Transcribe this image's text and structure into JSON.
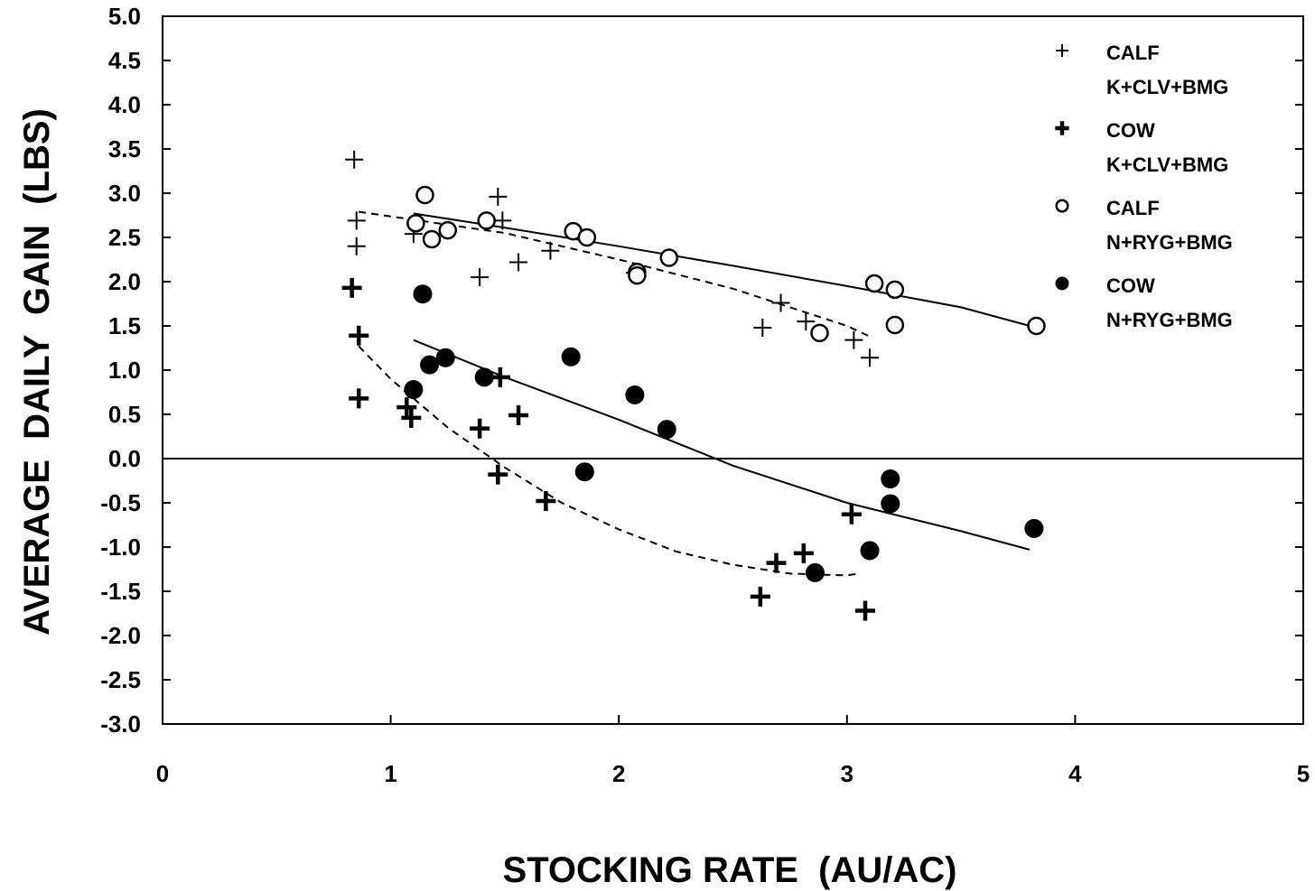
{
  "chart_data": {
    "type": "scatter",
    "xlabel": "STOCKING RATE  (AU/AC)",
    "ylabel": "AVERAGE  DAILY  GAIN  (LBS)",
    "xlim": [
      0,
      5
    ],
    "ylim": [
      -3.0,
      5.0
    ],
    "x_ticks": [
      "0",
      "1",
      "2",
      "3",
      "4",
      "5"
    ],
    "y_ticks": [
      "5.0",
      "4.5",
      "4.0",
      "3.5",
      "3.0",
      "2.5",
      "2.0",
      "1.5",
      "1.0",
      "0.5",
      "0.0",
      "-0.5",
      "-1.0",
      "-1.5",
      "-2.0",
      "-2.5",
      "-3.0"
    ],
    "grid": false,
    "reference_line_y": 0,
    "legend_position": "top-right",
    "series": [
      {
        "name": "CALF",
        "subname": "K+CLV+BMG",
        "marker": "thin-plus",
        "points": [
          [
            0.84,
            3.38
          ],
          [
            0.85,
            2.69
          ],
          [
            0.85,
            2.4
          ],
          [
            1.1,
            2.54
          ],
          [
            1.39,
            2.05
          ],
          [
            1.47,
            2.96
          ],
          [
            1.49,
            2.69
          ],
          [
            1.56,
            2.22
          ],
          [
            1.7,
            2.35
          ],
          [
            2.07,
            2.1
          ],
          [
            2.63,
            1.48
          ],
          [
            2.71,
            1.76
          ],
          [
            2.82,
            1.55
          ],
          [
            3.03,
            1.34
          ],
          [
            3.1,
            1.14
          ]
        ],
        "fit_line": {
          "style": "dashed",
          "points": [
            [
              0.86,
              2.79
            ],
            [
              1.5,
              2.55
            ],
            [
              2.0,
              2.25
            ],
            [
              2.5,
              1.92
            ],
            [
              3.0,
              1.5
            ],
            [
              3.1,
              1.38
            ]
          ]
        }
      },
      {
        "name": "COW",
        "subname": "K+CLV+BMG",
        "marker": "bold-plus",
        "points": [
          [
            0.83,
            1.93
          ],
          [
            0.86,
            1.39
          ],
          [
            0.86,
            0.68
          ],
          [
            1.07,
            0.58
          ],
          [
            1.09,
            0.46
          ],
          [
            1.39,
            0.34
          ],
          [
            1.47,
            -0.18
          ],
          [
            1.48,
            0.92
          ],
          [
            1.56,
            0.49
          ],
          [
            1.68,
            -0.48
          ],
          [
            2.62,
            -1.56
          ],
          [
            2.69,
            -1.18
          ],
          [
            2.81,
            -1.07
          ],
          [
            3.02,
            -0.63
          ],
          [
            3.08,
            -1.72
          ]
        ],
        "fit_line": {
          "style": "dashed",
          "points": [
            [
              0.86,
              1.27
            ],
            [
              1.0,
              0.9
            ],
            [
              1.25,
              0.35
            ],
            [
              1.5,
              -0.1
            ],
            [
              1.75,
              -0.5
            ],
            [
              2.0,
              -0.8
            ],
            [
              2.25,
              -1.05
            ],
            [
              2.5,
              -1.2
            ],
            [
              2.75,
              -1.3
            ],
            [
              3.0,
              -1.32
            ],
            [
              3.05,
              -1.3
            ]
          ]
        }
      },
      {
        "name": "CALF",
        "subname": "N+RYG+BMG",
        "marker": "open-circle",
        "points": [
          [
            1.11,
            2.66
          ],
          [
            1.15,
            2.98
          ],
          [
            1.18,
            2.48
          ],
          [
            1.25,
            2.58
          ],
          [
            1.42,
            2.69
          ],
          [
            1.8,
            2.57
          ],
          [
            1.86,
            2.5
          ],
          [
            2.08,
            2.11
          ],
          [
            2.08,
            2.07
          ],
          [
            2.22,
            2.27
          ],
          [
            2.88,
            1.42
          ],
          [
            3.12,
            1.98
          ],
          [
            3.21,
            1.91
          ],
          [
            3.21,
            1.51
          ],
          [
            3.83,
            1.5
          ]
        ],
        "fit_line": {
          "style": "solid",
          "points": [
            [
              1.1,
              2.77
            ],
            [
              1.5,
              2.61
            ],
            [
              2.0,
              2.4
            ],
            [
              2.5,
              2.18
            ],
            [
              3.0,
              1.95
            ],
            [
              3.5,
              1.71
            ],
            [
              3.83,
              1.48
            ]
          ]
        }
      },
      {
        "name": "COW",
        "subname": "N+RYG+BMG",
        "marker": "filled-circle",
        "points": [
          [
            1.1,
            0.78
          ],
          [
            1.14,
            1.86
          ],
          [
            1.17,
            1.06
          ],
          [
            1.24,
            1.14
          ],
          [
            1.41,
            0.92
          ],
          [
            1.79,
            1.15
          ],
          [
            1.85,
            -0.15
          ],
          [
            2.07,
            0.72
          ],
          [
            2.21,
            0.33
          ],
          [
            2.86,
            -1.29
          ],
          [
            3.1,
            -1.04
          ],
          [
            3.19,
            -0.23
          ],
          [
            3.19,
            -0.51
          ],
          [
            3.82,
            -0.79
          ]
        ],
        "fit_line": {
          "style": "solid",
          "points": [
            [
              1.1,
              1.34
            ],
            [
              1.5,
              0.92
            ],
            [
              2.0,
              0.44
            ],
            [
              2.5,
              -0.08
            ],
            [
              3.0,
              -0.5
            ],
            [
              3.5,
              -0.82
            ],
            [
              3.8,
              -1.03
            ]
          ]
        }
      }
    ]
  }
}
